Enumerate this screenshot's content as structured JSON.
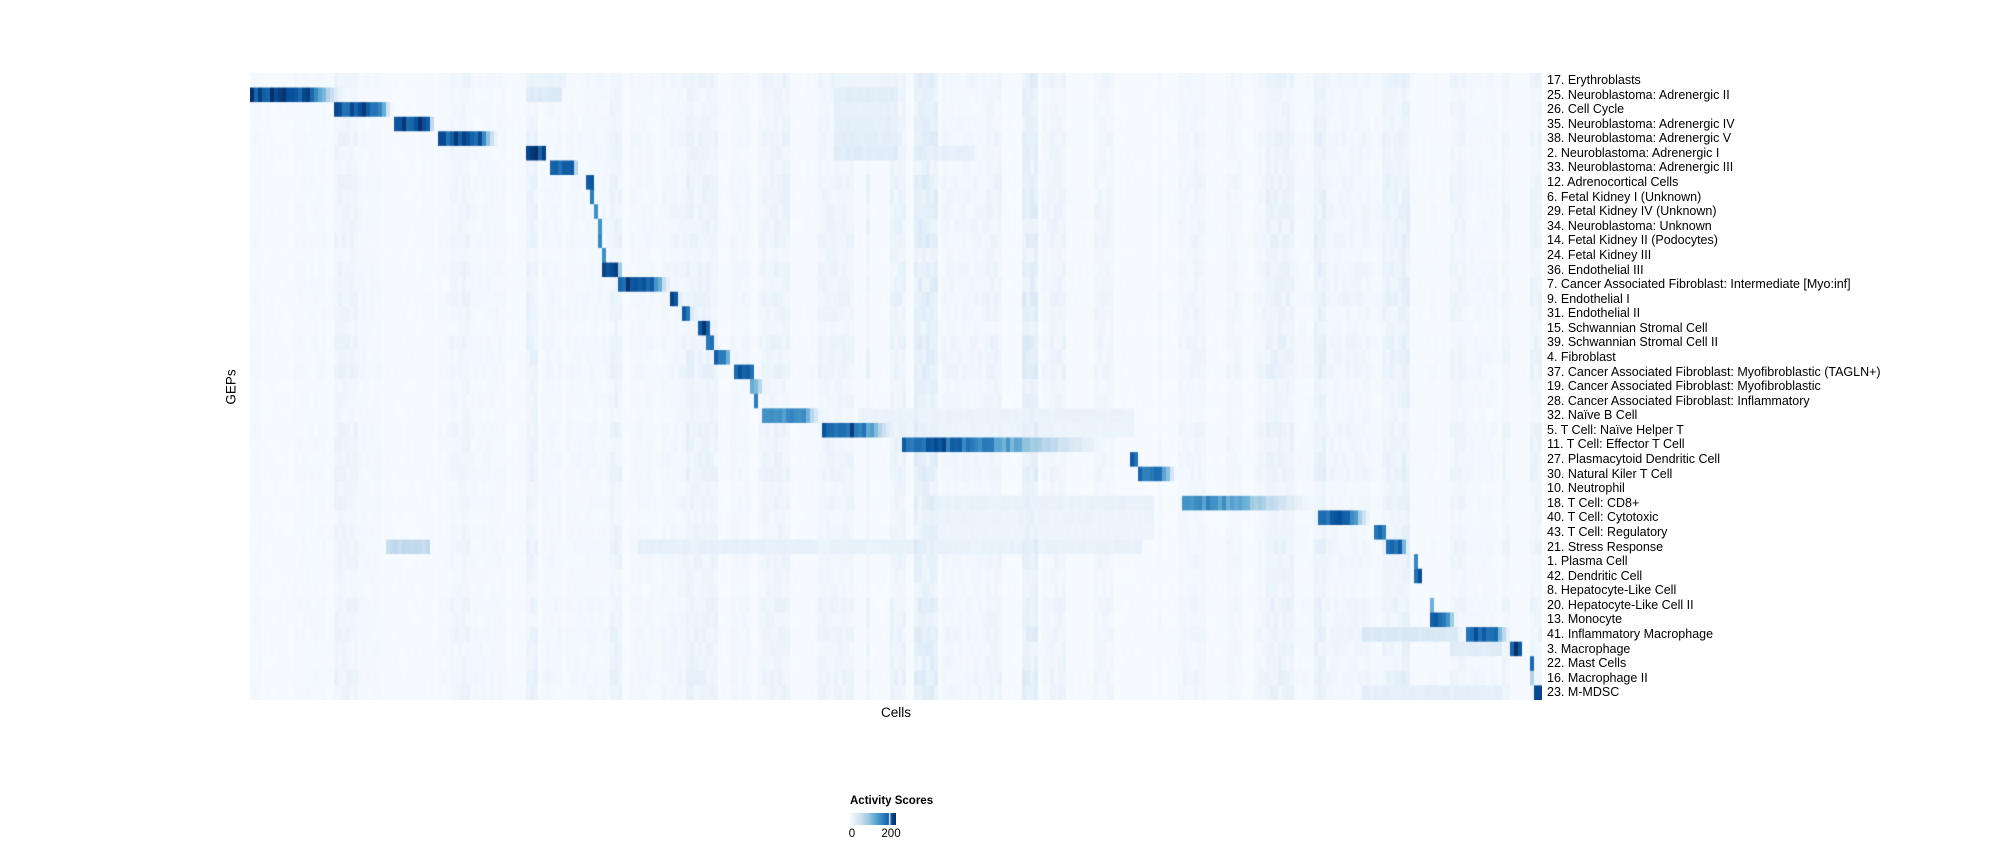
{
  "chart_data": {
    "type": "heatmap",
    "xlabel": "Cells",
    "ylabel": "GEPs",
    "legend": {
      "title": "Activity Scores",
      "min_label": "0",
      "tick_label": "200",
      "tick_value": 200,
      "scale_max": 235
    },
    "colormap_name": "Blues",
    "colormap_stops": [
      [
        0.0,
        "#f7fbff"
      ],
      [
        0.13,
        "#deebf7"
      ],
      [
        0.26,
        "#c6dbef"
      ],
      [
        0.39,
        "#9ecae1"
      ],
      [
        0.52,
        "#6baed6"
      ],
      [
        0.65,
        "#4292c6"
      ],
      [
        0.78,
        "#2171b5"
      ],
      [
        0.9,
        "#08519c"
      ],
      [
        1.0,
        "#08306b"
      ]
    ],
    "rows": [
      {
        "label": "17. Erythroblasts",
        "segments": [
          [
            0.215,
            0.245,
            16,
            0
          ],
          [
            0.453,
            0.503,
            13,
            0
          ]
        ]
      },
      {
        "label": "25. Neuroblastoma: Adrenergic II",
        "segments": [
          [
            0.0,
            0.0387,
            215,
            0.037
          ],
          [
            0.215,
            0.24,
            30,
            0
          ],
          [
            0.453,
            0.503,
            26,
            0
          ]
        ]
      },
      {
        "label": "26. Cell Cycle",
        "segments": [
          [
            0.0665,
            0.0967,
            205,
            0.015
          ],
          [
            0.453,
            0.503,
            20,
            0
          ]
        ]
      },
      {
        "label": "35. Neuroblastoma: Adrenergic IV",
        "segments": [
          [
            0.11,
            0.1355,
            210,
            0.009
          ],
          [
            0.453,
            0.503,
            22,
            0
          ]
        ]
      },
      {
        "label": "38. Neuroblastoma: Adrenergic V",
        "segments": [
          [
            0.147,
            0.175,
            205,
            0.019
          ],
          [
            0.453,
            0.503,
            24,
            0
          ]
        ]
      },
      {
        "label": "2. Neuroblastoma: Adrenergic I",
        "segments": [
          [
            0.2144,
            0.2268,
            215,
            0.004
          ],
          [
            0.453,
            0.503,
            28,
            0
          ],
          [
            0.52,
            0.56,
            20,
            0
          ]
        ]
      },
      {
        "label": "33. Neuroblastoma: Adrenergic III",
        "segments": [
          [
            0.2337,
            0.2492,
            205,
            0.005
          ]
        ]
      },
      {
        "label": "12. Adrenocortical Cells",
        "segments": [
          [
            0.2601,
            0.2647,
            195,
            0.002
          ]
        ]
      },
      {
        "label": "6. Fetal Kidney I (Unknown)",
        "segments": [
          [
            0.2647,
            0.2678,
            170,
            0
          ]
        ]
      },
      {
        "label": "29. Fetal Kidney IV (Unknown)",
        "segments": [
          [
            0.267,
            0.2693,
            140,
            0
          ]
        ]
      },
      {
        "label": "34. Neuroblastoma: Unknown",
        "segments": [
          [
            0.2686,
            0.2709,
            150,
            0
          ]
        ]
      },
      {
        "label": "14. Fetal Kidney II (Podocytes)",
        "segments": [
          [
            0.2701,
            0.2724,
            160,
            0
          ]
        ]
      },
      {
        "label": "24. Fetal Kidney III",
        "segments": [
          [
            0.2717,
            0.274,
            150,
            0
          ]
        ]
      },
      {
        "label": "36. Endothelial III",
        "segments": [
          [
            0.2724,
            0.2848,
            215,
            0.003
          ]
        ]
      },
      {
        "label": "7. Cancer Associated Fibroblast: Intermediate [Myo:inf]",
        "segments": [
          [
            0.2863,
            0.3065,
            210,
            0.022
          ]
        ]
      },
      {
        "label": "9. Endothelial I",
        "segments": [
          [
            0.3259,
            0.3313,
            215,
            0.002
          ]
        ]
      },
      {
        "label": "31. Endothelial II",
        "segments": [
          [
            0.3344,
            0.3406,
            200,
            0.002
          ]
        ]
      },
      {
        "label": "15. Schwannian Stromal Cell",
        "segments": [
          [
            0.3467,
            0.3545,
            210,
            0.003
          ]
        ]
      },
      {
        "label": "39. Schwannian Stromal Cell II",
        "segments": [
          [
            0.3537,
            0.3583,
            190,
            0.002
          ]
        ]
      },
      {
        "label": "4. Fibroblast",
        "segments": [
          [
            0.3583,
            0.3676,
            195,
            0.006
          ]
        ]
      },
      {
        "label": "37. Cancer Associated Fibroblast: Myofibroblastic (TAGLN+)",
        "segments": [
          [
            0.3738,
            0.3885,
            215,
            0.003
          ]
        ]
      },
      {
        "label": "19. Cancer Associated Fibroblast: Myofibroblastic",
        "segments": [
          [
            0.387,
            0.3931,
            120,
            0.004
          ]
        ]
      },
      {
        "label": "28. Cancer Associated Fibroblast: Inflammatory",
        "segments": [
          [
            0.3908,
            0.3939,
            185,
            0
          ]
        ]
      },
      {
        "label": "32. Naïve B Cell",
        "segments": [
          [
            0.3955,
            0.4256,
            150,
            0.019
          ],
          [
            0.47,
            0.685,
            16,
            0
          ]
        ]
      },
      {
        "label": "5. T Cell: Naïve Helper T",
        "segments": [
          [
            0.4435,
            0.4659,
            200,
            0.037
          ],
          [
            0.5,
            0.685,
            13,
            0
          ]
        ]
      },
      {
        "label": "11. T Cell: Effector T Cell",
        "segments": [
          [
            0.5054,
            0.527,
            195,
            0.154
          ]
        ]
      },
      {
        "label": "27. Plasmacytoid Dendritic Cell",
        "segments": [
          [
            0.6819,
            0.6865,
            200,
            0
          ]
        ]
      },
      {
        "label": "30. Natural Kiler T Cell",
        "segments": [
          [
            0.6888,
            0.7043,
            175,
            0.014
          ]
        ]
      },
      {
        "label": "10. Neutrophil",
        "segments": [
          [
            0.7206,
            0.7229,
            150,
            0
          ]
        ]
      },
      {
        "label": "18. T Cell: CD8+",
        "segments": [
          [
            0.7221,
            0.7314,
            160,
            0.104
          ],
          [
            0.52,
            0.7,
            18,
            0
          ]
        ]
      },
      {
        "label": "40. T Cell: Cytotoxic",
        "segments": [
          [
            0.8258,
            0.849,
            195,
            0.02
          ],
          [
            0.52,
            0.7,
            14,
            0
          ]
        ]
      },
      {
        "label": "43. T Cell: Regulatory",
        "segments": [
          [
            0.8707,
            0.8785,
            190,
            0
          ],
          [
            0.52,
            0.7,
            12,
            0
          ]
        ]
      },
      {
        "label": "21. Stress Response",
        "segments": [
          [
            0.8793,
            0.8901,
            195,
            0.008
          ],
          [
            0.105,
            0.138,
            60,
            0
          ],
          [
            0.3,
            0.44,
            20,
            0
          ],
          [
            0.45,
            0.69,
            18,
            0
          ]
        ]
      },
      {
        "label": "1. Plasma Cell",
        "segments": [
          [
            0.8994,
            0.9025,
            180,
            0
          ]
        ]
      },
      {
        "label": "42. Dendritic Cell",
        "segments": [
          [
            0.9002,
            0.9056,
            200,
            0
          ]
        ]
      },
      {
        "label": "8. Hepatocyte-Like Cell",
        "segments": [
          [
            0.9118,
            0.9141,
            120,
            0
          ]
        ]
      },
      {
        "label": "20. Hepatocyte-Like Cell II",
        "segments": [
          [
            0.9133,
            0.9157,
            110,
            0
          ]
        ]
      },
      {
        "label": "13. Monocyte",
        "segments": [
          [
            0.9133,
            0.9249,
            190,
            0.01
          ]
        ]
      },
      {
        "label": "41. Inflammatory Macrophage",
        "segments": [
          [
            0.9427,
            0.9605,
            200,
            0.017
          ],
          [
            0.86,
            0.935,
            35,
            0
          ]
        ]
      },
      {
        "label": "3. Macrophage",
        "segments": [
          [
            0.9737,
            0.983,
            220,
            0.002
          ],
          [
            0.93,
            0.97,
            28,
            0
          ]
        ]
      },
      {
        "label": "22. Mast Cells",
        "segments": [
          [
            0.9907,
            0.993,
            190,
            0
          ]
        ]
      },
      {
        "label": "16. Macrophage II",
        "segments": [
          [
            0.9915,
            0.9945,
            80,
            0
          ]
        ]
      },
      {
        "label": "23. M-MDSC",
        "segments": [
          [
            0.993,
            1.0,
            210,
            0
          ],
          [
            0.86,
            0.97,
            22,
            0
          ]
        ]
      }
    ]
  }
}
